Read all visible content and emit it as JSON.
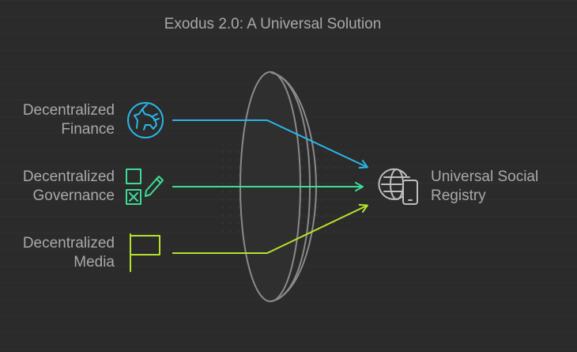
{
  "title": "Exodus 2.0: A Universal Solution",
  "inputs": [
    {
      "line1": "Decentralized",
      "line2": "Finance",
      "icon": "unicorn-icon",
      "color": "#29b6e8"
    },
    {
      "line1": "Decentralized",
      "line2": "Governance",
      "icon": "ballot-pencil-icon",
      "color": "#3ddc97"
    },
    {
      "line1": "Decentralized",
      "line2": "Media",
      "icon": "flag-icon",
      "color": "#b6e32a"
    }
  ],
  "output": {
    "line1": "Universal Social",
    "line2": "Registry",
    "icon": "globe-phone-icon",
    "color": "#bdbdbd"
  },
  "lens_color": "#8a8a8a"
}
